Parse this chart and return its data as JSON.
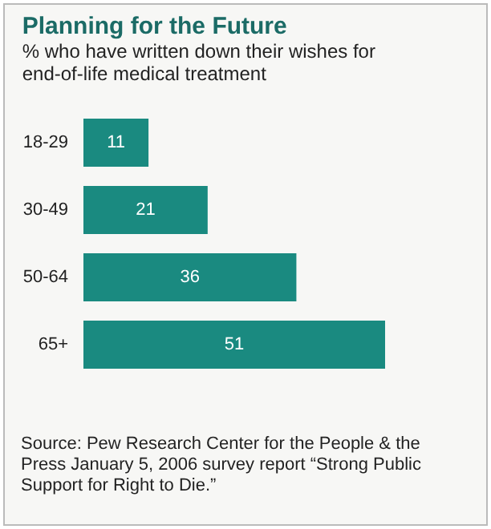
{
  "chart_data": {
    "type": "bar",
    "orientation": "horizontal",
    "title": "Planning for the Future",
    "subtitle": "% who have written down their wishes for end-of-life medical treatment",
    "categories": [
      "18-29",
      "30-49",
      "50-64",
      "65+"
    ],
    "values": [
      11,
      21,
      36,
      51
    ],
    "color": "#1a8a80",
    "data_labels": true,
    "annotations": [
      "Source: Pew Research Center for the People & the Press January 5, 2006 survey report “Strong Public Support for Right to Die.”"
    ]
  }
}
